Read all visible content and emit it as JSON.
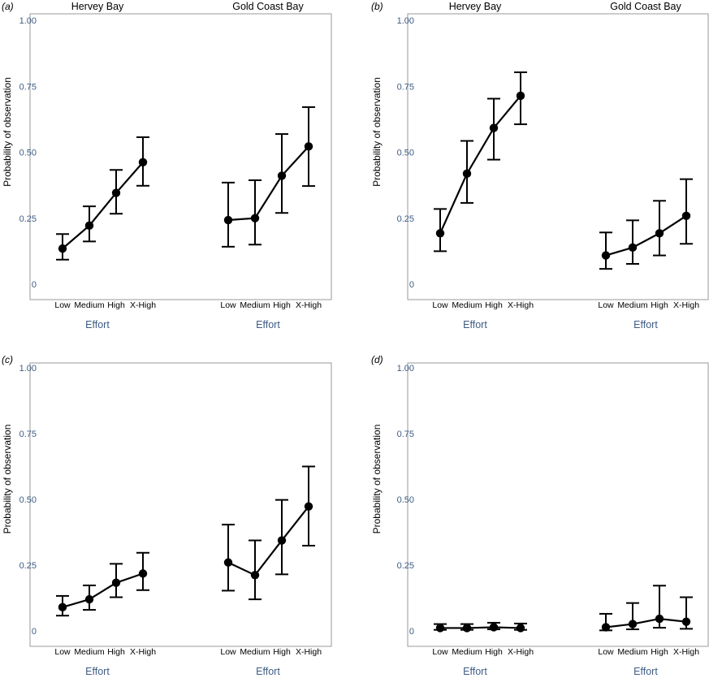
{
  "chart_data": [
    {
      "type": "line",
      "panel": "(a)",
      "groups": [
        "Hervey Bay",
        "Gold Coast Bay"
      ],
      "categories": [
        "Low",
        "Medium",
        "High",
        "X-High"
      ],
      "xlabel": "Effort",
      "ylabel": "Probability of observation",
      "ylim": [
        0,
        1
      ],
      "yticks": [
        "0",
        "0.25",
        "0.50",
        "0.75",
        "1.00"
      ],
      "series": [
        {
          "group": "Hervey Bay",
          "values": [
            0.135,
            0.222,
            0.346,
            0.462
          ],
          "lower": [
            0.093,
            0.162,
            0.267,
            0.373
          ],
          "upper": [
            0.19,
            0.295,
            0.433,
            0.557
          ]
        },
        {
          "group": "Gold Coast Bay",
          "values": [
            0.243,
            0.25,
            0.411,
            0.522
          ],
          "lower": [
            0.142,
            0.15,
            0.27,
            0.372
          ],
          "upper": [
            0.385,
            0.394,
            0.569,
            0.671
          ]
        }
      ]
    },
    {
      "type": "line",
      "panel": "(b)",
      "groups": [
        "Hervey Bay",
        "Gold Coast Bay"
      ],
      "categories": [
        "Low",
        "Medium",
        "High",
        "X-High"
      ],
      "xlabel": "Effort",
      "ylabel": "Probability of observation",
      "ylim": [
        0,
        1
      ],
      "yticks": [
        "0",
        "0.25",
        "0.50",
        "0.75",
        "1.00"
      ],
      "series": [
        {
          "group": "Hervey Bay",
          "values": [
            0.193,
            0.419,
            0.592,
            0.714
          ],
          "lower": [
            0.125,
            0.308,
            0.472,
            0.606
          ],
          "upper": [
            0.285,
            0.543,
            0.703,
            0.803
          ]
        },
        {
          "group": "Gold Coast Bay",
          "values": [
            0.109,
            0.139,
            0.193,
            0.259
          ],
          "lower": [
            0.058,
            0.077,
            0.109,
            0.153
          ],
          "upper": [
            0.196,
            0.242,
            0.316,
            0.398
          ]
        }
      ]
    },
    {
      "type": "line",
      "panel": "(c)",
      "categories": [
        "Low",
        "Medium",
        "High",
        "X-High"
      ],
      "xlabel": "Effort",
      "ylabel": "Probability of observation",
      "ylim": [
        0,
        1
      ],
      "yticks": [
        "0",
        "0.25",
        "0.50",
        "0.75",
        "1.00"
      ],
      "series": [
        {
          "group": "Hervey Bay",
          "values": [
            0.09,
            0.12,
            0.183,
            0.218
          ],
          "lower": [
            0.058,
            0.08,
            0.128,
            0.155
          ],
          "upper": [
            0.133,
            0.173,
            0.255,
            0.297
          ]
        },
        {
          "group": "Gold Coast Bay",
          "values": [
            0.26,
            0.212,
            0.344,
            0.473
          ],
          "lower": [
            0.153,
            0.12,
            0.215,
            0.324
          ],
          "upper": [
            0.404,
            0.344,
            0.498,
            0.625
          ]
        }
      ]
    },
    {
      "type": "line",
      "panel": "(d)",
      "categories": [
        "Low",
        "Medium",
        "High",
        "X-High"
      ],
      "xlabel": "Effort",
      "ylabel": "Probability of observation",
      "ylim": [
        0,
        1
      ],
      "yticks": [
        "0",
        "0.25",
        "0.50",
        "0.75",
        "1.00"
      ],
      "series": [
        {
          "group": "Hervey Bay",
          "values": [
            0.011,
            0.011,
            0.014,
            0.011
          ],
          "lower": [
            0.004,
            0.004,
            0.006,
            0.004
          ],
          "upper": [
            0.026,
            0.026,
            0.031,
            0.028
          ]
        },
        {
          "group": "Gold Coast Bay",
          "values": [
            0.014,
            0.026,
            0.046,
            0.035
          ],
          "lower": [
            0.002,
            0.006,
            0.012,
            0.008
          ],
          "upper": [
            0.065,
            0.106,
            0.172,
            0.128
          ]
        }
      ]
    }
  ]
}
